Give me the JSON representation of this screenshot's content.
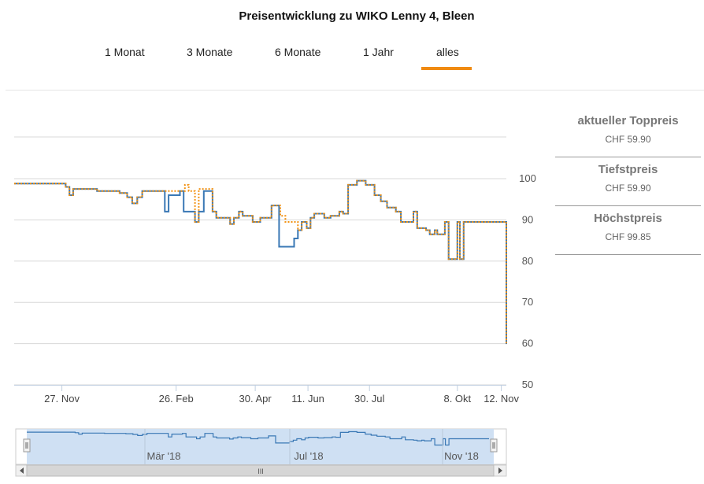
{
  "header": {
    "title": "Preisentwicklung zu WIKO Lenny 4, Bleen"
  },
  "range_tabs": [
    {
      "label": "1 Monat",
      "active": false
    },
    {
      "label": "3 Monate",
      "active": false
    },
    {
      "label": "6 Monate",
      "active": false
    },
    {
      "label": "1 Jahr",
      "active": false
    },
    {
      "label": "alles",
      "active": true
    }
  ],
  "summary": [
    {
      "label": "aktueller Toppreis",
      "value": "CHF 59.90"
    },
    {
      "label": "Tiefstpreis",
      "value": "CHF 59.90"
    },
    {
      "label": "Höchstpreis",
      "value": "CHF 99.85"
    }
  ],
  "colors": {
    "accent": "#f08a12",
    "series_blue": "#3a78b5",
    "series_orange": "#f29111",
    "grid": "#d8d8d8",
    "navigator_fill": "#cfe0f3",
    "navigator_line": "#3a78b5"
  },
  "navigator": {
    "tick_labels": [
      "Mär '18",
      "Jul '18",
      "Nov '18"
    ],
    "scroll_grip": "III"
  },
  "chart_data": {
    "type": "line",
    "title": "Preisentwicklung zu WIKO Lenny 4, Bleen",
    "x_type": "datetime",
    "x_range": [
      "2017-10-20",
      "2018-11-16"
    ],
    "ylim": [
      50,
      100
    ],
    "y_ticks": [
      50,
      60,
      70,
      80,
      90,
      100
    ],
    "x_ticks": [
      {
        "date": "2017-11-27",
        "label": "27. Nov"
      },
      {
        "date": "2018-02-26",
        "label": "26. Feb"
      },
      {
        "date": "2018-04-30",
        "label": "30. Apr"
      },
      {
        "date": "2018-06-11",
        "label": "11. Jun"
      },
      {
        "date": "2018-07-30",
        "label": "30. Jul"
      },
      {
        "date": "2018-10-08",
        "label": "8. Okt"
      },
      {
        "date": "2018-11-12",
        "label": "12. Nov"
      }
    ],
    "grid": true,
    "step": true,
    "series": [
      {
        "name": "",
        "style": "solid",
        "color": "#3a78b5",
        "points": [
          [
            "2017-10-20",
            98.8
          ],
          [
            "2017-11-30",
            98.0
          ],
          [
            "2017-12-03",
            96.0
          ],
          [
            "2017-12-06",
            97.5
          ],
          [
            "2017-12-25",
            97.0
          ],
          [
            "2018-01-12",
            96.5
          ],
          [
            "2018-01-18",
            95.5
          ],
          [
            "2018-01-22",
            94.0
          ],
          [
            "2018-01-26",
            95.5
          ],
          [
            "2018-01-30",
            97.0
          ],
          [
            "2018-02-06",
            97.0
          ],
          [
            "2018-02-17",
            92.0
          ],
          [
            "2018-02-20",
            96.0
          ],
          [
            "2018-03-01",
            97.0
          ],
          [
            "2018-03-04",
            92.0
          ],
          [
            "2018-03-13",
            89.5
          ],
          [
            "2018-03-16",
            92.0
          ],
          [
            "2018-03-20",
            97.0
          ],
          [
            "2018-03-27",
            92.0
          ],
          [
            "2018-03-30",
            90.5
          ],
          [
            "2018-04-10",
            89.0
          ],
          [
            "2018-04-13",
            90.5
          ],
          [
            "2018-04-17",
            92.0
          ],
          [
            "2018-04-20",
            91.0
          ],
          [
            "2018-04-28",
            89.5
          ],
          [
            "2018-05-04",
            90.5
          ],
          [
            "2018-05-13",
            93.5
          ],
          [
            "2018-05-19",
            83.5
          ],
          [
            "2018-05-31",
            85.5
          ],
          [
            "2018-06-03",
            87.5
          ],
          [
            "2018-06-06",
            89.5
          ],
          [
            "2018-06-10",
            88.0
          ],
          [
            "2018-06-13",
            90.5
          ],
          [
            "2018-06-16",
            91.5
          ],
          [
            "2018-06-24",
            90.5
          ],
          [
            "2018-06-29",
            91.0
          ],
          [
            "2018-07-06",
            92.0
          ],
          [
            "2018-07-09",
            91.5
          ],
          [
            "2018-07-13",
            98.5
          ],
          [
            "2018-07-20",
            99.5
          ],
          [
            "2018-07-27",
            98.5
          ],
          [
            "2018-08-03",
            96.0
          ],
          [
            "2018-08-08",
            94.5
          ],
          [
            "2018-08-13",
            93.0
          ],
          [
            "2018-08-20",
            92.0
          ],
          [
            "2018-08-24",
            89.5
          ],
          [
            "2018-09-01",
            89.5
          ],
          [
            "2018-09-03",
            92.0
          ],
          [
            "2018-09-06",
            88.0
          ],
          [
            "2018-09-13",
            87.5
          ],
          [
            "2018-09-16",
            86.5
          ],
          [
            "2018-09-20",
            87.5
          ],
          [
            "2018-09-22",
            86.5
          ],
          [
            "2018-09-28",
            89.5
          ],
          [
            "2018-10-01",
            80.5
          ],
          [
            "2018-10-08",
            89.5
          ],
          [
            "2018-10-10",
            80.5
          ],
          [
            "2018-10-13",
            89.5
          ],
          [
            "2018-11-16",
            89.5
          ],
          [
            "2018-11-16",
            59.9
          ]
        ]
      },
      {
        "name": "",
        "style": "dotted",
        "color": "#f29111",
        "points": [
          [
            "2017-10-20",
            98.8
          ],
          [
            "2017-11-30",
            98.0
          ],
          [
            "2017-12-03",
            96.0
          ],
          [
            "2017-12-06",
            97.5
          ],
          [
            "2017-12-25",
            97.0
          ],
          [
            "2018-01-12",
            96.5
          ],
          [
            "2018-01-18",
            95.5
          ],
          [
            "2018-01-22",
            94.0
          ],
          [
            "2018-01-26",
            95.5
          ],
          [
            "2018-01-30",
            97.0
          ],
          [
            "2018-02-20",
            97.0
          ],
          [
            "2018-03-05",
            98.5
          ],
          [
            "2018-03-08",
            97.0
          ],
          [
            "2018-03-13",
            89.5
          ],
          [
            "2018-03-16",
            97.5
          ],
          [
            "2018-03-27",
            92.0
          ],
          [
            "2018-03-30",
            90.5
          ],
          [
            "2018-04-10",
            89.0
          ],
          [
            "2018-04-13",
            90.5
          ],
          [
            "2018-04-17",
            92.0
          ],
          [
            "2018-04-20",
            91.0
          ],
          [
            "2018-04-28",
            89.5
          ],
          [
            "2018-05-04",
            90.5
          ],
          [
            "2018-05-13",
            93.5
          ],
          [
            "2018-05-20",
            91.0
          ],
          [
            "2018-05-24",
            89.5
          ],
          [
            "2018-06-03",
            87.5
          ],
          [
            "2018-06-06",
            89.5
          ],
          [
            "2018-06-10",
            88.0
          ],
          [
            "2018-06-13",
            90.5
          ],
          [
            "2018-06-16",
            91.5
          ],
          [
            "2018-06-24",
            90.5
          ],
          [
            "2018-06-29",
            91.0
          ],
          [
            "2018-07-06",
            92.0
          ],
          [
            "2018-07-09",
            91.5
          ],
          [
            "2018-07-13",
            98.5
          ],
          [
            "2018-07-20",
            99.5
          ],
          [
            "2018-07-27",
            98.5
          ],
          [
            "2018-08-03",
            96.0
          ],
          [
            "2018-08-08",
            94.5
          ],
          [
            "2018-08-13",
            93.0
          ],
          [
            "2018-08-20",
            92.0
          ],
          [
            "2018-08-24",
            89.5
          ],
          [
            "2018-09-01",
            89.5
          ],
          [
            "2018-09-03",
            92.0
          ],
          [
            "2018-09-06",
            88.0
          ],
          [
            "2018-09-13",
            87.5
          ],
          [
            "2018-09-16",
            86.5
          ],
          [
            "2018-09-20",
            87.5
          ],
          [
            "2018-09-22",
            86.5
          ],
          [
            "2018-09-28",
            89.5
          ],
          [
            "2018-10-01",
            80.5
          ],
          [
            "2018-10-08",
            89.5
          ],
          [
            "2018-10-10",
            80.5
          ],
          [
            "2018-10-13",
            89.5
          ],
          [
            "2018-11-16",
            89.5
          ],
          [
            "2018-11-16",
            59.9
          ]
        ]
      }
    ]
  }
}
